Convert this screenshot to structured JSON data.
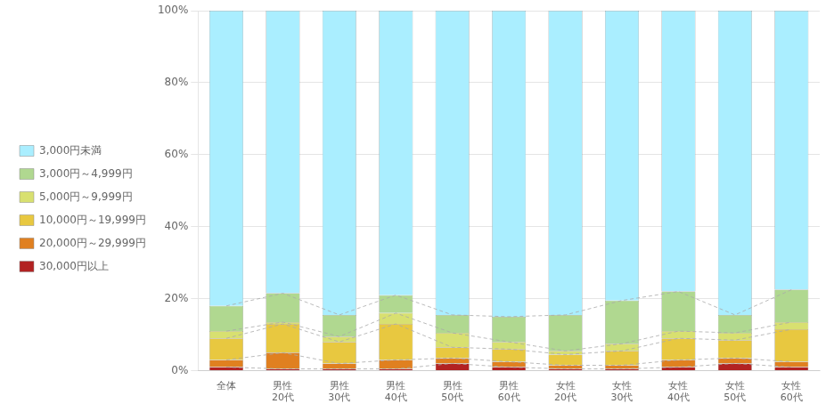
{
  "chart_data": {
    "type": "bar",
    "stacked": true,
    "categories": [
      "全体",
      "男性\n20代",
      "男性\n30代",
      "男性\n40代",
      "男性\n50代",
      "男性\n60代",
      "女性\n20代",
      "女性\n30代",
      "女性\n40代",
      "女性\n50代",
      "女性\n60代"
    ],
    "series": [
      {
        "name": "30,000円以上",
        "color": "#b22222",
        "values": [
          1.0,
          0.5,
          0.5,
          0.5,
          2.0,
          1.0,
          0.5,
          0.5,
          1.0,
          2.0,
          1.0
        ]
      },
      {
        "name": "20,000円～29,999円",
        "color": "#e08020",
        "values": [
          2.0,
          4.5,
          1.5,
          2.5,
          1.5,
          1.5,
          1.0,
          1.0,
          2.0,
          1.5,
          1.5
        ]
      },
      {
        "name": "10,000円～19,999円",
        "color": "#e8c840",
        "values": [
          6.0,
          8.0,
          6.0,
          10.0,
          3.0,
          3.5,
          3.0,
          4.0,
          6.0,
          5.0,
          9.0
        ]
      },
      {
        "name": "5,000円～9,999円",
        "color": "#d8e070",
        "values": [
          2.0,
          0.5,
          1.5,
          3.0,
          4.0,
          2.0,
          1.0,
          2.0,
          2.0,
          2.0,
          2.0
        ]
      },
      {
        "name": "3,000円～4,999円",
        "color": "#b0d890",
        "values": [
          7.0,
          8.0,
          6.0,
          5.0,
          5.0,
          7.0,
          10.0,
          12.0,
          11.0,
          5.0,
          9.0
        ]
      },
      {
        "name": "3,000円未満",
        "color": "#aaeeff",
        "values": [
          82.0,
          78.5,
          84.5,
          79.0,
          84.5,
          85.0,
          84.5,
          80.5,
          78.0,
          84.5,
          77.5
        ]
      }
    ],
    "ylim": [
      0,
      100
    ],
    "yticks": [
      {
        "value": 0,
        "label": "0%"
      },
      {
        "value": 20,
        "label": "20%"
      },
      {
        "value": 40,
        "label": "40%"
      },
      {
        "value": 60,
        "label": "60%"
      },
      {
        "value": 80,
        "label": "80%"
      },
      {
        "value": 100,
        "label": "100%"
      }
    ],
    "grid": true,
    "legend": "left"
  }
}
